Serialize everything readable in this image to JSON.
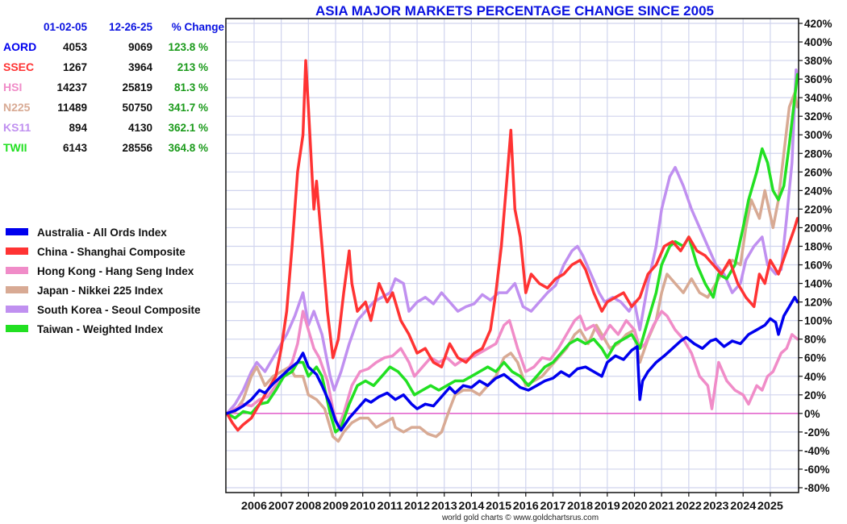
{
  "chart_data": {
    "type": "line",
    "title": "ASIA MAJOR MARKETS PERCENTAGE CHANGE SINCE 2005",
    "xlabel": "",
    "ylabel": "",
    "xlim": [
      2005.0,
      2026.0
    ],
    "ylim": [
      -80,
      420
    ],
    "y_ticks": [
      420,
      400,
      380,
      360,
      340,
      320,
      300,
      280,
      260,
      240,
      220,
      200,
      180,
      160,
      140,
      120,
      100,
      80,
      60,
      40,
      20,
      0,
      -20,
      -40,
      -60,
      -80
    ],
    "y_tick_labels": [
      "420%",
      "400%",
      "380%",
      "360%",
      "340%",
      "320%",
      "300%",
      "280%",
      "260%",
      "240%",
      "220%",
      "200%",
      "180%",
      "160%",
      "140%",
      "120%",
      "100%",
      "80%",
      "60%",
      "40%",
      "20%",
      "0%",
      "-20%",
      "-40%",
      "-60%",
      "-80%"
    ],
    "x_ticks": [
      2006,
      2007,
      2008,
      2009,
      2010,
      2011,
      2012,
      2013,
      2014,
      2015,
      2016,
      2017,
      2018,
      2019,
      2020,
      2021,
      2022,
      2023,
      2024,
      2025
    ],
    "x_tick_labels": [
      "2006",
      "2007",
      "2008",
      "2009",
      "2010",
      "2011",
      "2012",
      "2013",
      "2014",
      "2015",
      "2016",
      "2017",
      "2018",
      "2019",
      "2020",
      "2021",
      "2022",
      "2023",
      "2024",
      "2025"
    ],
    "grid": true,
    "zero_line_color": "#e040c0",
    "legend_position": "left",
    "credit": "world gold charts © www.goldchartsrus.com",
    "series": [
      {
        "name": "Australia - All Ords Index",
        "color": "#0000ee",
        "x": [
          2005.0,
          2005.3,
          2005.6,
          2005.9,
          2006.2,
          2006.4,
          2006.7,
          2007.0,
          2007.3,
          2007.6,
          2007.8,
          2008.0,
          2008.3,
          2008.5,
          2008.8,
          2009.0,
          2009.2,
          2009.5,
          2009.8,
          2010.1,
          2010.3,
          2010.6,
          2010.9,
          2011.2,
          2011.5,
          2011.8,
          2012.0,
          2012.3,
          2012.6,
          2012.9,
          2013.2,
          2013.4,
          2013.7,
          2014.0,
          2014.3,
          2014.6,
          2014.9,
          2015.2,
          2015.5,
          2015.8,
          2016.1,
          2016.4,
          2016.7,
          2017.0,
          2017.3,
          2017.6,
          2017.9,
          2018.2,
          2018.5,
          2018.8,
          2019.0,
          2019.3,
          2019.6,
          2019.9,
          2020.1,
          2020.2,
          2020.3,
          2020.5,
          2020.8,
          2021.1,
          2021.4,
          2021.7,
          2021.9,
          2022.2,
          2022.5,
          2022.8,
          2023.0,
          2023.3,
          2023.6,
          2023.9,
          2024.2,
          2024.5,
          2024.8,
          2025.0,
          2025.2,
          2025.3,
          2025.5,
          2025.7,
          2025.9,
          2026.0
        ],
        "values": [
          0,
          3,
          8,
          15,
          25,
          22,
          32,
          40,
          48,
          55,
          65,
          50,
          42,
          30,
          10,
          -8,
          -18,
          -5,
          5,
          15,
          12,
          18,
          22,
          15,
          20,
          10,
          5,
          10,
          8,
          18,
          28,
          22,
          30,
          28,
          35,
          30,
          38,
          42,
          35,
          28,
          25,
          30,
          35,
          38,
          45,
          40,
          48,
          50,
          45,
          40,
          55,
          62,
          58,
          68,
          72,
          15,
          35,
          45,
          55,
          62,
          70,
          78,
          82,
          75,
          70,
          78,
          80,
          72,
          78,
          75,
          85,
          90,
          95,
          102,
          98,
          85,
          105,
          115,
          125,
          120
        ]
      },
      {
        "name": "China - Shanghai Composite",
        "color": "#ff3333",
        "x": [
          2005.0,
          2005.2,
          2005.4,
          2005.6,
          2005.9,
          2006.1,
          2006.3,
          2006.5,
          2006.8,
          2007.0,
          2007.2,
          2007.4,
          2007.6,
          2007.8,
          2007.9,
          2008.0,
          2008.2,
          2008.3,
          2008.5,
          2008.7,
          2008.9,
          2009.1,
          2009.3,
          2009.5,
          2009.6,
          2009.8,
          2010.1,
          2010.3,
          2010.6,
          2010.9,
          2011.1,
          2011.4,
          2011.7,
          2012.0,
          2012.3,
          2012.6,
          2012.9,
          2013.2,
          2013.5,
          2013.8,
          2014.1,
          2014.4,
          2014.7,
          2014.9,
          2015.1,
          2015.3,
          2015.45,
          2015.6,
          2015.8,
          2016.0,
          2016.2,
          2016.5,
          2016.8,
          2017.1,
          2017.4,
          2017.7,
          2018.0,
          2018.2,
          2018.5,
          2018.8,
          2019.0,
          2019.3,
          2019.6,
          2019.9,
          2020.2,
          2020.5,
          2020.8,
          2021.1,
          2021.4,
          2021.7,
          2022.0,
          2022.3,
          2022.6,
          2022.9,
          2023.2,
          2023.5,
          2023.8,
          2024.1,
          2024.4,
          2024.6,
          2024.8,
          2025.0,
          2025.3,
          2025.6,
          2025.9,
          2026.0
        ],
        "values": [
          0,
          -10,
          -18,
          -12,
          -5,
          5,
          15,
          25,
          40,
          70,
          110,
          180,
          260,
          300,
          380,
          330,
          220,
          250,
          180,
          110,
          60,
          80,
          130,
          175,
          140,
          110,
          120,
          100,
          140,
          120,
          130,
          100,
          85,
          65,
          70,
          55,
          50,
          75,
          60,
          55,
          65,
          70,
          90,
          130,
          180,
          250,
          305,
          220,
          190,
          130,
          150,
          140,
          135,
          145,
          150,
          160,
          165,
          155,
          130,
          110,
          120,
          125,
          130,
          115,
          125,
          150,
          160,
          180,
          185,
          175,
          190,
          175,
          170,
          160,
          150,
          165,
          140,
          125,
          115,
          150,
          140,
          165,
          150,
          175,
          200,
          210
        ]
      },
      {
        "name": "Hong Kong - Hang Seng Index",
        "color": "#f08cc8",
        "x": [
          2005.0,
          2005.3,
          2005.6,
          2005.9,
          2006.2,
          2006.5,
          2006.8,
          2007.1,
          2007.4,
          2007.6,
          2007.8,
          2008.0,
          2008.2,
          2008.4,
          2008.7,
          2008.9,
          2009.1,
          2009.3,
          2009.6,
          2009.9,
          2010.2,
          2010.5,
          2010.8,
          2011.1,
          2011.4,
          2011.7,
          2011.9,
          2012.2,
          2012.5,
          2012.8,
          2013.1,
          2013.4,
          2013.7,
          2014.0,
          2014.3,
          2014.6,
          2014.9,
          2015.2,
          2015.4,
          2015.7,
          2016.0,
          2016.3,
          2016.6,
          2016.9,
          2017.2,
          2017.5,
          2017.8,
          2018.0,
          2018.2,
          2018.5,
          2018.8,
          2019.1,
          2019.4,
          2019.7,
          2020.0,
          2020.2,
          2020.4,
          2020.7,
          2021.0,
          2021.2,
          2021.5,
          2021.8,
          2022.1,
          2022.4,
          2022.7,
          2022.85,
          2023.1,
          2023.4,
          2023.7,
          2024.0,
          2024.2,
          2024.5,
          2024.7,
          2024.9,
          2025.1,
          2025.4,
          2025.6,
          2025.8,
          2026.0
        ],
        "values": [
          0,
          5,
          10,
          8,
          15,
          18,
          30,
          40,
          55,
          75,
          110,
          90,
          70,
          60,
          35,
          5,
          -15,
          0,
          30,
          45,
          48,
          55,
          60,
          62,
          70,
          55,
          40,
          50,
          60,
          55,
          60,
          52,
          58,
          60,
          65,
          70,
          75,
          95,
          100,
          70,
          45,
          50,
          60,
          58,
          70,
          85,
          100,
          105,
          90,
          95,
          80,
          95,
          85,
          100,
          90,
          70,
          75,
          95,
          110,
          105,
          90,
          80,
          65,
          40,
          30,
          5,
          55,
          35,
          25,
          20,
          10,
          30,
          25,
          40,
          45,
          65,
          70,
          85,
          80
        ]
      },
      {
        "name": "Japan - Nikkei 225 Index",
        "color": "#d8aa94",
        "x": [
          2005.0,
          2005.3,
          2005.6,
          2005.9,
          2006.1,
          2006.4,
          2006.7,
          2007.0,
          2007.3,
          2007.5,
          2007.8,
          2008.0,
          2008.3,
          2008.6,
          2008.9,
          2009.1,
          2009.3,
          2009.6,
          2009.9,
          2010.2,
          2010.5,
          2010.8,
          2011.1,
          2011.2,
          2011.5,
          2011.8,
          2012.1,
          2012.4,
          2012.7,
          2012.9,
          2013.2,
          2013.4,
          2013.7,
          2014.0,
          2014.3,
          2014.6,
          2014.9,
          2015.2,
          2015.45,
          2015.7,
          2016.0,
          2016.3,
          2016.6,
          2016.9,
          2017.2,
          2017.5,
          2017.8,
          2018.0,
          2018.3,
          2018.6,
          2018.9,
          2019.1,
          2019.4,
          2019.7,
          2020.0,
          2020.2,
          2020.5,
          2020.8,
          2021.0,
          2021.2,
          2021.5,
          2021.8,
          2022.1,
          2022.4,
          2022.7,
          2023.0,
          2023.3,
          2023.6,
          2023.9,
          2024.1,
          2024.3,
          2024.6,
          2024.8,
          2025.1,
          2025.3,
          2025.5,
          2025.7,
          2025.9,
          2026.0
        ],
        "values": [
          0,
          2,
          15,
          40,
          50,
          30,
          40,
          45,
          50,
          40,
          40,
          20,
          15,
          5,
          -25,
          -30,
          -20,
          -10,
          -5,
          -5,
          -15,
          -10,
          -5,
          -15,
          -20,
          -15,
          -15,
          -22,
          -25,
          -20,
          5,
          20,
          25,
          25,
          20,
          30,
          40,
          60,
          65,
          55,
          30,
          35,
          40,
          50,
          60,
          70,
          85,
          90,
          75,
          95,
          80,
          70,
          75,
          85,
          90,
          55,
          80,
          100,
          130,
          150,
          140,
          130,
          145,
          130,
          125,
          140,
          155,
          165,
          160,
          200,
          230,
          210,
          240,
          200,
          230,
          280,
          330,
          345,
          330
        ]
      },
      {
        "name": "South Korea - Seoul Composite",
        "color": "#c090f0",
        "x": [
          2005.0,
          2005.3,
          2005.6,
          2005.9,
          2006.1,
          2006.4,
          2006.7,
          2007.0,
          2007.2,
          2007.5,
          2007.8,
          2008.0,
          2008.2,
          2008.5,
          2008.8,
          2008.95,
          2009.2,
          2009.5,
          2009.8,
          2010.1,
          2010.4,
          2010.7,
          2011.0,
          2011.2,
          2011.5,
          2011.7,
          2012.0,
          2012.3,
          2012.6,
          2012.9,
          2013.2,
          2013.5,
          2013.8,
          2014.1,
          2014.4,
          2014.7,
          2015.0,
          2015.3,
          2015.6,
          2015.9,
          2016.2,
          2016.5,
          2016.8,
          2017.1,
          2017.4,
          2017.7,
          2017.9,
          2018.1,
          2018.4,
          2018.7,
          2018.9,
          2019.2,
          2019.5,
          2019.8,
          2020.0,
          2020.2,
          2020.5,
          2020.8,
          2021.0,
          2021.3,
          2021.5,
          2021.8,
          2022.1,
          2022.4,
          2022.7,
          2023.0,
          2023.3,
          2023.6,
          2023.9,
          2024.1,
          2024.4,
          2024.7,
          2024.9,
          2025.2,
          2025.4,
          2025.6,
          2025.8,
          2025.95,
          2026.0
        ],
        "values": [
          0,
          10,
          25,
          45,
          55,
          45,
          60,
          75,
          85,
          105,
          130,
          95,
          110,
          85,
          40,
          25,
          45,
          75,
          100,
          110,
          120,
          125,
          130,
          145,
          140,
          110,
          120,
          125,
          118,
          130,
          120,
          110,
          115,
          118,
          128,
          122,
          130,
          130,
          140,
          115,
          110,
          120,
          130,
          138,
          160,
          175,
          180,
          170,
          150,
          130,
          120,
          125,
          120,
          110,
          120,
          90,
          140,
          180,
          220,
          255,
          265,
          245,
          220,
          200,
          180,
          160,
          150,
          130,
          140,
          165,
          180,
          190,
          160,
          150,
          155,
          210,
          270,
          370,
          360
        ]
      },
      {
        "name": "Taiwan - Weighted Index",
        "color": "#22e022",
        "x": [
          2005.0,
          2005.3,
          2005.6,
          2005.9,
          2006.2,
          2006.5,
          2006.8,
          2007.1,
          2007.4,
          2007.6,
          2007.8,
          2008.0,
          2008.3,
          2008.5,
          2008.8,
          2009.0,
          2009.2,
          2009.5,
          2009.8,
          2010.1,
          2010.4,
          2010.7,
          2011.0,
          2011.3,
          2011.6,
          2011.9,
          2012.2,
          2012.5,
          2012.8,
          2013.1,
          2013.4,
          2013.7,
          2014.0,
          2014.3,
          2014.6,
          2014.9,
          2015.2,
          2015.5,
          2015.8,
          2016.1,
          2016.4,
          2016.7,
          2017.0,
          2017.3,
          2017.6,
          2017.9,
          2018.2,
          2018.5,
          2018.8,
          2019.0,
          2019.3,
          2019.6,
          2019.9,
          2020.2,
          2020.5,
          2020.8,
          2021.0,
          2021.3,
          2021.5,
          2021.8,
          2022.0,
          2022.3,
          2022.6,
          2022.9,
          2023.1,
          2023.4,
          2023.7,
          2024.0,
          2024.2,
          2024.5,
          2024.7,
          2024.9,
          2025.1,
          2025.3,
          2025.5,
          2025.7,
          2025.9,
          2026.0
        ],
        "values": [
          0,
          -5,
          2,
          0,
          10,
          12,
          25,
          40,
          45,
          55,
          55,
          40,
          50,
          40,
          0,
          -20,
          -15,
          10,
          30,
          35,
          30,
          40,
          50,
          45,
          35,
          20,
          25,
          30,
          25,
          30,
          35,
          35,
          40,
          45,
          50,
          45,
          55,
          45,
          40,
          30,
          40,
          50,
          55,
          65,
          75,
          80,
          75,
          80,
          70,
          60,
          75,
          80,
          85,
          70,
          100,
          130,
          160,
          180,
          185,
          180,
          190,
          160,
          140,
          125,
          150,
          145,
          160,
          200,
          230,
          260,
          285,
          270,
          240,
          230,
          245,
          290,
          340,
          365
        ]
      }
    ]
  },
  "table": {
    "headers": [
      "01-02-05",
      "12-26-25",
      "% Change"
    ],
    "rows": [
      {
        "symbol": "AORD",
        "color": "#0000ee",
        "start": "4053",
        "end": "9069",
        "change": "123.8 %"
      },
      {
        "symbol": "SSEC",
        "color": "#ff3333",
        "start": "1267",
        "end": "3964",
        "change": "213 %"
      },
      {
        "symbol": "HSI",
        "color": "#f08cc8",
        "start": "14237",
        "end": "25819",
        "change": "81.3 %"
      },
      {
        "symbol": "N225",
        "color": "#d8aa94",
        "start": "11489",
        "end": "50750",
        "change": "341.7 %"
      },
      {
        "symbol": "KS11",
        "color": "#c090f0",
        "start": "894",
        "end": "4130",
        "change": "362.1 %"
      },
      {
        "symbol": "TWII",
        "color": "#22e022",
        "start": "6143",
        "end": "28556",
        "change": "364.8 %"
      }
    ]
  }
}
